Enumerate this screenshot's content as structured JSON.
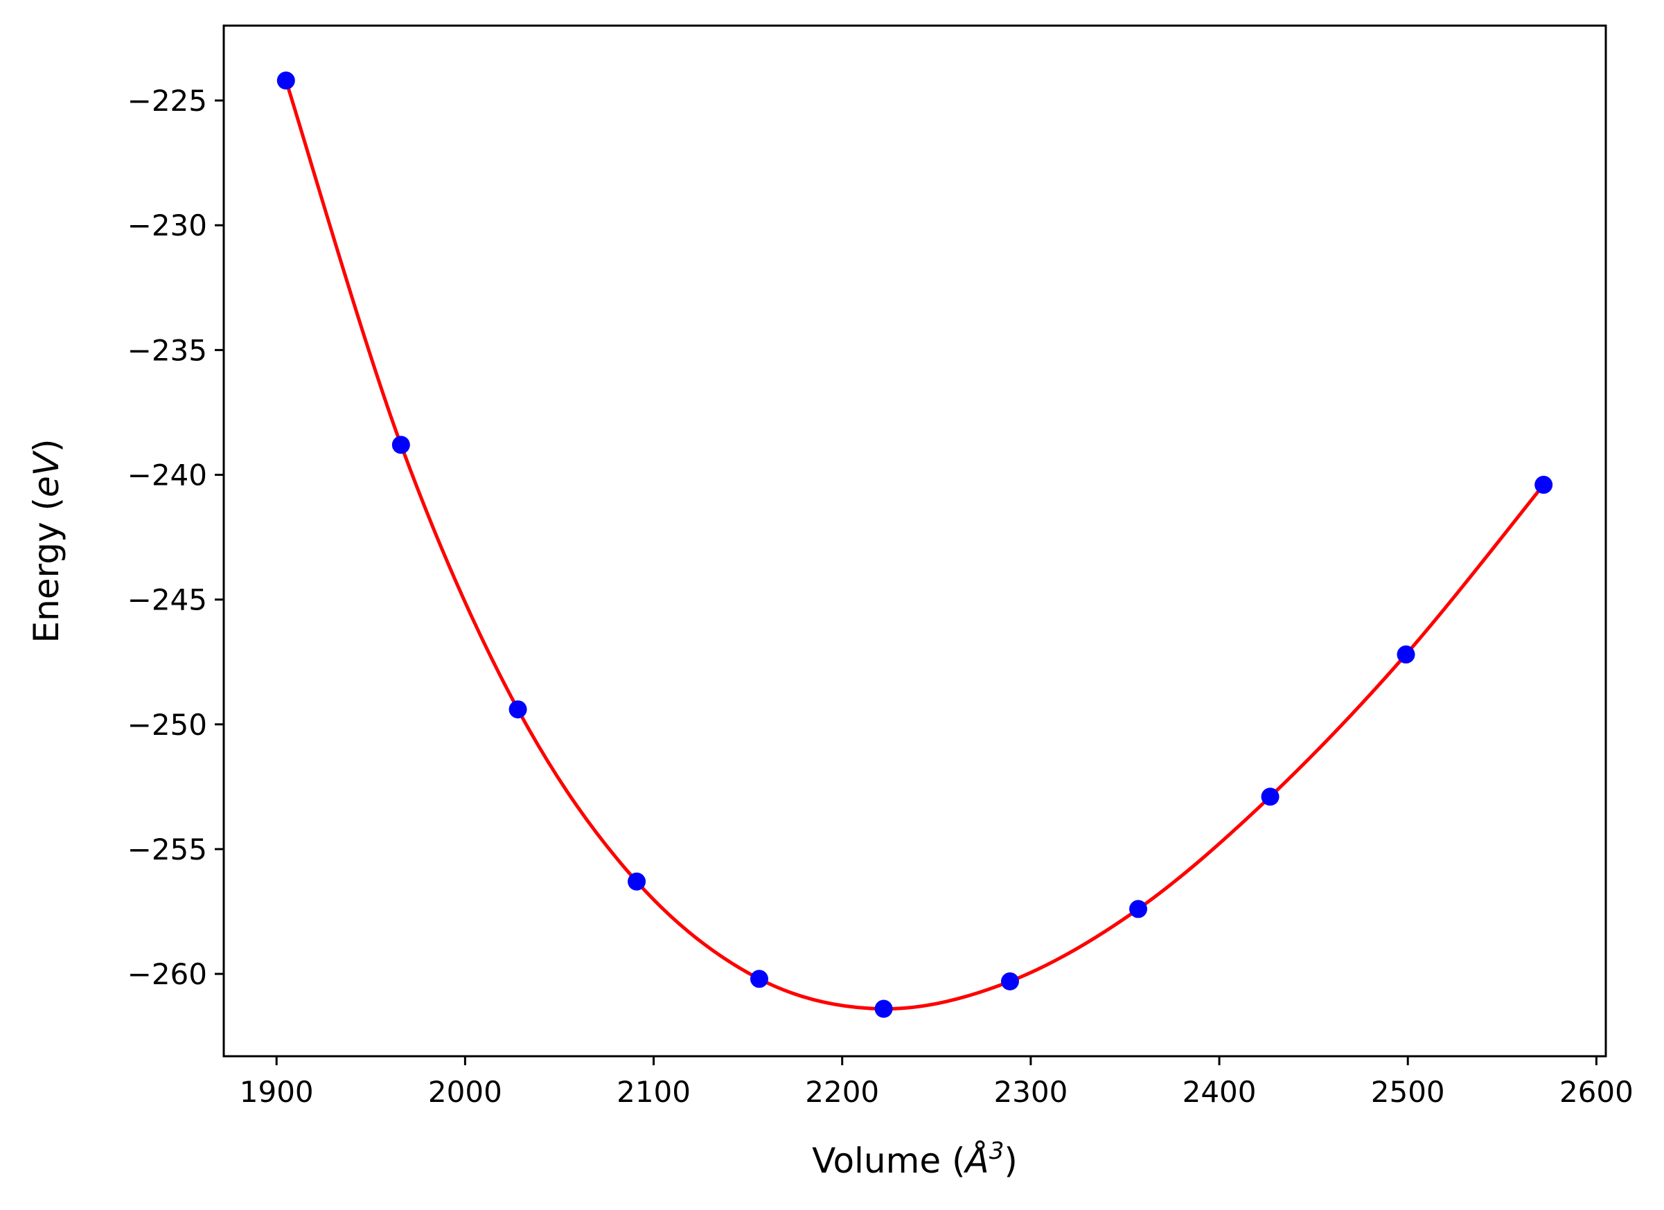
{
  "chart_data": {
    "type": "scatter",
    "title": "",
    "xlabel": {
      "pre": "Volume (",
      "italic": "Å",
      "sup": "3",
      "post": ")"
    },
    "ylabel": {
      "pre": "Energy (",
      "italic": "eV",
      "post": ")"
    },
    "xlim": [
      1872,
      2605
    ],
    "ylim": [
      -263.3,
      -222.0
    ],
    "xticks": [
      1900,
      2000,
      2100,
      2200,
      2300,
      2400,
      2500,
      2600
    ],
    "yticks": [
      -225,
      -230,
      -235,
      -240,
      -245,
      -250,
      -255,
      -260
    ],
    "grid": false,
    "series": [
      {
        "kind": "points",
        "color": "#0000ff",
        "x": [
          1905,
          1966,
          2028,
          2091,
          2156,
          2222,
          2289,
          2357,
          2427,
          2499,
          2572
        ],
        "y": [
          -224.2,
          -238.8,
          -249.4,
          -256.3,
          -260.2,
          -261.4,
          -260.3,
          -257.4,
          -252.9,
          -247.2,
          -240.4
        ]
      },
      {
        "kind": "fit-curve",
        "color": "#ff0000",
        "anchors_x": [
          1905,
          1966,
          2028,
          2091,
          2156,
          2222,
          2289,
          2357,
          2427,
          2499,
          2572
        ],
        "anchors_y": [
          -224.2,
          -238.8,
          -249.4,
          -256.3,
          -260.2,
          -261.4,
          -260.3,
          -257.4,
          -252.9,
          -247.2,
          -240.4
        ]
      }
    ]
  }
}
